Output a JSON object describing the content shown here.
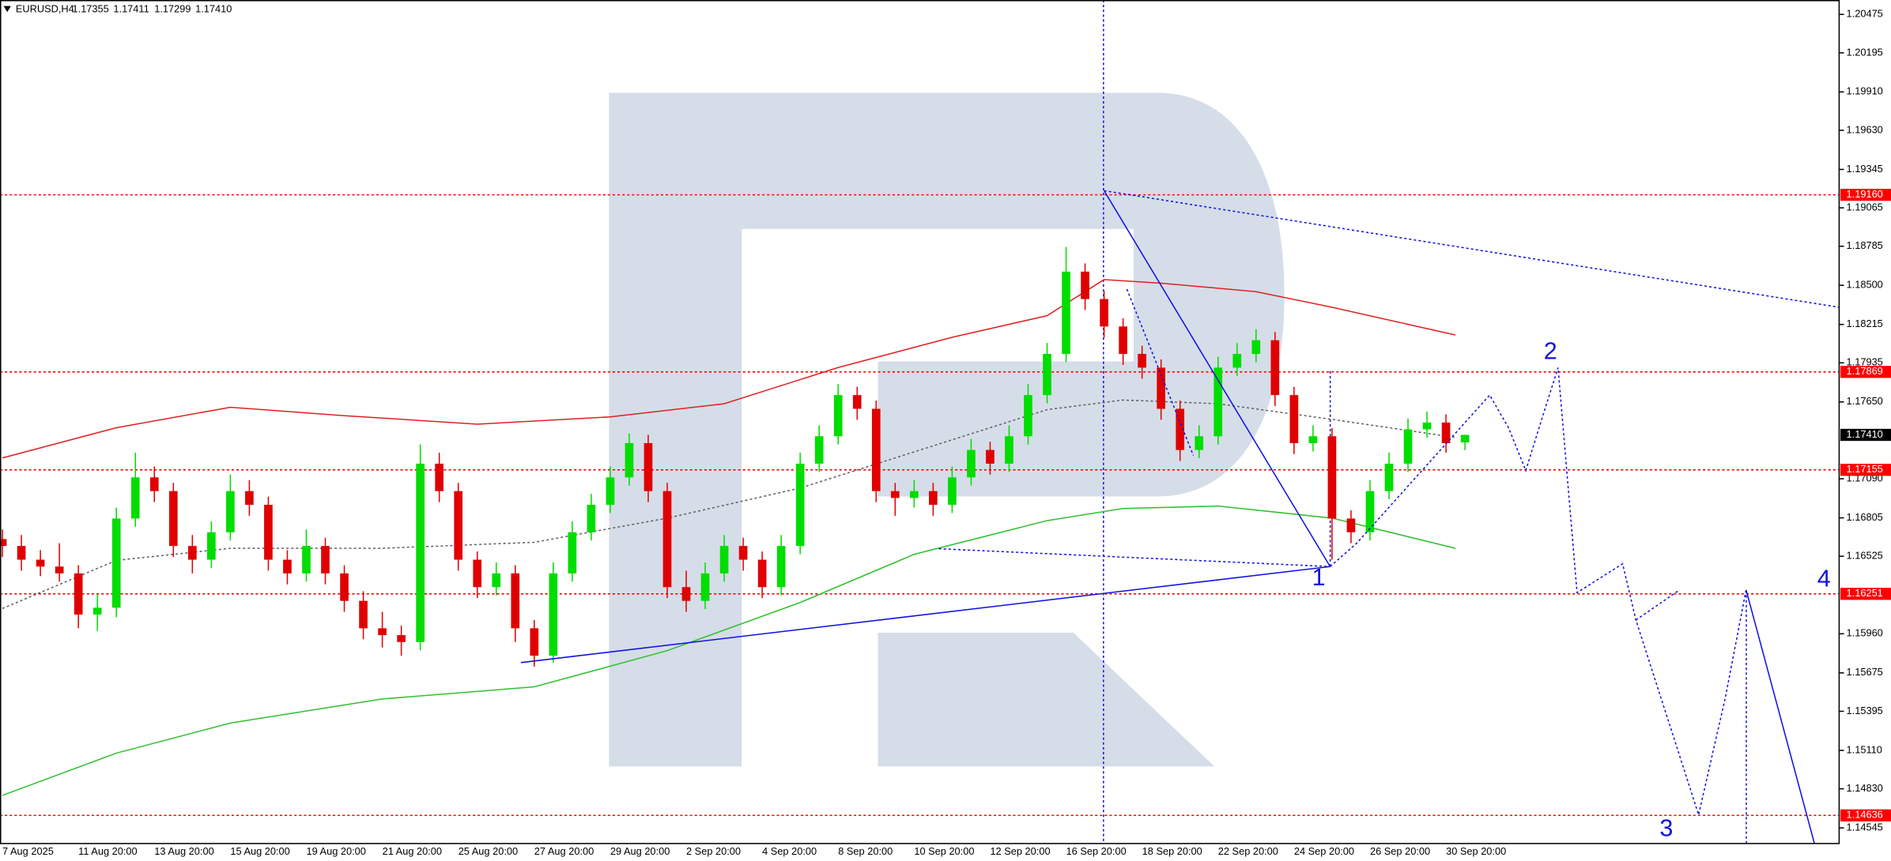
{
  "chart_data": {
    "type": "candlestick",
    "symbol": "EURUSD,H4",
    "header_values": [
      "1.17355",
      "1.17411",
      "1.17299",
      "1.17410"
    ],
    "categories": [
      "7 Aug 2025",
      null,
      null,
      null,
      "11 Aug 20:00",
      null,
      null,
      null,
      "13 Aug 20:00",
      null,
      null,
      null,
      "15 Aug 20:00",
      null,
      null,
      null,
      "19 Aug 20:00",
      null,
      null,
      null,
      "21 Aug 20:00",
      null,
      null,
      null,
      "25 Aug 20:00",
      null,
      null,
      null,
      "27 Aug 20:00",
      null,
      null,
      null,
      "29 Aug 20:00",
      null,
      null,
      null,
      "2 Sep 20:00",
      null,
      null,
      null,
      "4 Sep 20:00",
      null,
      null,
      null,
      "8 Sep 20:00",
      null,
      null,
      null,
      "10 Sep 20:00",
      null,
      null,
      null,
      "12 Sep 20:00",
      null,
      null,
      null,
      "16 Sep 20:00",
      null,
      null,
      null,
      "18 Sep 20:00",
      null,
      null,
      null,
      "22 Sep 20:00",
      null,
      null,
      null,
      "24 Sep 20:00",
      null,
      null,
      null,
      "26 Sep 20:00",
      null,
      null,
      null,
      "30 Sep 20:00",
      null,
      null,
      null,
      null,
      null,
      null,
      null,
      null,
      null,
      null,
      null,
      null,
      null,
      null,
      null,
      null,
      null,
      null,
      null,
      null
    ],
    "ohlc": [
      [
        1.1665,
        1.1672,
        1.1652,
        1.166
      ],
      [
        1.166,
        1.1668,
        1.1642,
        1.165
      ],
      [
        1.165,
        1.1657,
        1.1638,
        1.1645
      ],
      [
        1.1645,
        1.1662,
        1.1634,
        1.164
      ],
      [
        1.164,
        1.1646,
        1.16,
        1.161
      ],
      [
        1.161,
        1.1625,
        1.1598,
        1.1615
      ],
      [
        1.1615,
        1.1688,
        1.1608,
        1.168
      ],
      [
        1.168,
        1.1728,
        1.1674,
        1.171
      ],
      [
        1.171,
        1.1718,
        1.1692,
        1.17
      ],
      [
        1.17,
        1.1706,
        1.1652,
        1.166
      ],
      [
        1.166,
        1.1668,
        1.164,
        1.165
      ],
      [
        1.165,
        1.1678,
        1.1644,
        1.167
      ],
      [
        1.167,
        1.1712,
        1.1664,
        1.17
      ],
      [
        1.17,
        1.1708,
        1.1682,
        1.169
      ],
      [
        1.169,
        1.1696,
        1.1642,
        1.165
      ],
      [
        1.165,
        1.1657,
        1.1632,
        1.164
      ],
      [
        1.164,
        1.1672,
        1.1634,
        1.166
      ],
      [
        1.166,
        1.1666,
        1.1632,
        1.164
      ],
      [
        1.164,
        1.1646,
        1.1612,
        1.162
      ],
      [
        1.162,
        1.1627,
        1.1592,
        1.16
      ],
      [
        1.16,
        1.1612,
        1.1586,
        1.1595
      ],
      [
        1.1595,
        1.1602,
        1.158,
        1.159
      ],
      [
        1.159,
        1.1734,
        1.1584,
        1.172
      ],
      [
        1.172,
        1.1728,
        1.1692,
        1.17
      ],
      [
        1.17,
        1.1706,
        1.1642,
        1.165
      ],
      [
        1.165,
        1.1656,
        1.1622,
        1.163
      ],
      [
        1.163,
        1.1648,
        1.1624,
        1.164
      ],
      [
        1.164,
        1.1646,
        1.159,
        1.16
      ],
      [
        1.16,
        1.1606,
        1.1572,
        1.158
      ],
      [
        1.158,
        1.1648,
        1.1575,
        1.164
      ],
      [
        1.164,
        1.1678,
        1.1634,
        1.167
      ],
      [
        1.167,
        1.1698,
        1.1664,
        1.169
      ],
      [
        1.169,
        1.1718,
        1.1684,
        1.171
      ],
      [
        1.171,
        1.1742,
        1.1704,
        1.1735
      ],
      [
        1.1735,
        1.1741,
        1.1692,
        1.17
      ],
      [
        1.17,
        1.1706,
        1.1622,
        1.163
      ],
      [
        1.163,
        1.1642,
        1.1612,
        1.162
      ],
      [
        1.162,
        1.1648,
        1.1614,
        1.164
      ],
      [
        1.164,
        1.1668,
        1.1634,
        1.166
      ],
      [
        1.166,
        1.1666,
        1.1642,
        1.165
      ],
      [
        1.165,
        1.1656,
        1.1622,
        1.163
      ],
      [
        1.163,
        1.1668,
        1.1624,
        1.166
      ],
      [
        1.166,
        1.1728,
        1.1654,
        1.172
      ],
      [
        1.172,
        1.1748,
        1.1714,
        1.174
      ],
      [
        1.174,
        1.1778,
        1.1734,
        1.177
      ],
      [
        1.177,
        1.1776,
        1.1752,
        1.176
      ],
      [
        1.176,
        1.1766,
        1.1692,
        1.17
      ],
      [
        1.17,
        1.1706,
        1.1682,
        1.1695
      ],
      [
        1.1695,
        1.1708,
        1.1688,
        1.17
      ],
      [
        1.17,
        1.1706,
        1.1682,
        1.169
      ],
      [
        1.169,
        1.1718,
        1.1684,
        1.171
      ],
      [
        1.171,
        1.1738,
        1.1704,
        1.173
      ],
      [
        1.173,
        1.1736,
        1.1712,
        1.172
      ],
      [
        1.172,
        1.1748,
        1.1714,
        1.174
      ],
      [
        1.174,
        1.1778,
        1.1734,
        1.177
      ],
      [
        1.177,
        1.1808,
        1.1764,
        1.18
      ],
      [
        1.18,
        1.1878,
        1.1794,
        1.186
      ],
      [
        1.186,
        1.1866,
        1.1832,
        1.184
      ],
      [
        1.184,
        1.1846,
        1.1812,
        1.182
      ],
      [
        1.182,
        1.1826,
        1.1792,
        1.18
      ],
      [
        1.18,
        1.1806,
        1.1782,
        1.179
      ],
      [
        1.179,
        1.1796,
        1.1752,
        1.176
      ],
      [
        1.176,
        1.1766,
        1.1722,
        1.173
      ],
      [
        1.173,
        1.1748,
        1.1724,
        1.174
      ],
      [
        1.174,
        1.1798,
        1.1734,
        1.179
      ],
      [
        1.179,
        1.1808,
        1.1784,
        1.18
      ],
      [
        1.18,
        1.1818,
        1.1794,
        1.181
      ],
      [
        1.181,
        1.1816,
        1.1762,
        1.177
      ],
      [
        1.177,
        1.1776,
        1.1727,
        1.1735
      ],
      [
        1.1735,
        1.1748,
        1.1729,
        1.174
      ],
      [
        1.174,
        1.1746,
        1.165,
        1.168
      ],
      [
        1.168,
        1.1686,
        1.1662,
        1.167
      ],
      [
        1.167,
        1.1708,
        1.1664,
        1.17
      ],
      [
        1.17,
        1.1728,
        1.1694,
        1.172
      ],
      [
        1.172,
        1.1753,
        1.1714,
        1.1745
      ],
      [
        1.1745,
        1.1758,
        1.1739,
        1.175
      ],
      [
        1.175,
        1.1756,
        1.1728,
        1.1735
      ],
      [
        1.17355,
        1.17411,
        1.17299,
        1.1741
      ]
    ],
    "up_color": "#00dd00",
    "down_color": "#e00000",
    "ylim": [
      1.14431,
      1.2058
    ],
    "yticks": [
      1.20475,
      1.20195,
      {
        "value": 1.1991,
        "label": "1.19910"
      },
      {
        "value": 1.1963,
        "label": "1.19630"
      },
      1.19345,
      1.19065,
      1.18785,
      {
        "value": 1.185,
        "label": "1.18500"
      },
      1.18215,
      1.17935,
      {
        "value": 1.1765,
        "label": "1.17650"
      },
      {
        "value": 1.1709,
        "label": "1.17090"
      },
      1.16805,
      1.16525,
      {
        "value": 1.1596,
        "label": "1.15960"
      },
      1.15675,
      1.15395,
      {
        "value": 1.1511,
        "label": "1.15110"
      },
      {
        "value": 1.1483,
        "label": "1.14830"
      },
      1.14545
    ],
    "levels": [
      {
        "value": 1.1916,
        "label": "1.19160"
      },
      1.17869,
      1.17155,
      1.16251,
      1.14636
    ],
    "level_color": "#ff0000",
    "current_price": {
      "value": 1.1741,
      "label": "1.17410"
    },
    "grid": false,
    "indicators": [
      {
        "color": "#e02020",
        "style": "solid",
        "x": [
          0,
          6,
          12,
          18,
          25,
          32,
          38,
          44,
          50,
          55,
          58,
          61,
          66,
          70,
          76.5
        ],
        "values": [
          1.17242,
          1.17462,
          1.17611,
          1.1755,
          1.17488,
          1.17541,
          1.17637,
          1.17901,
          1.18121,
          1.18279,
          1.18542,
          1.18516,
          1.18454,
          1.1834,
          1.18138
        ]
      },
      {
        "color": "#606060",
        "style": "dotted",
        "x": [
          0,
          6,
          12,
          20,
          28,
          35,
          42,
          48,
          55,
          59,
          64,
          70,
          76.5
        ],
        "values": [
          1.16144,
          1.16495,
          1.16583,
          1.16583,
          1.16627,
          1.16803,
          1.17022,
          1.17286,
          1.17594,
          1.17664,
          1.17637,
          1.17523,
          1.17391
        ]
      },
      {
        "color": "#30c030",
        "style": "solid",
        "x": [
          0,
          6,
          12,
          20,
          28,
          35,
          42,
          48,
          55,
          59,
          64,
          70,
          76.5
        ],
        "values": [
          1.14782,
          1.1509,
          1.15309,
          1.15485,
          1.15573,
          1.15837,
          1.16188,
          1.16539,
          1.16785,
          1.16873,
          1.16891,
          1.16803,
          1.16583
        ]
      }
    ],
    "drawings": [
      {
        "color": "#1010e0",
        "style": "solid",
        "x": [
          27.3,
          69.9
        ],
        "values": [
          1.1575,
          1.1645
        ]
      },
      {
        "color": "#1010e0",
        "style": "solid",
        "x": [
          58,
          69.9
        ],
        "values": [
          1.1919,
          1.1645
        ]
      },
      {
        "color": "#1010e0",
        "style": "dotted",
        "x": [
          58,
          96.7
        ],
        "values": [
          1.1919,
          1.1834
        ]
      },
      {
        "color": "#1010e0",
        "style": "dotted",
        "x": [
          49.3,
          69.9
        ],
        "values": [
          1.1658,
          1.1645
        ]
      },
      {
        "color": "#1010e0",
        "style": "dotted",
        "x": [
          59.2,
          62.7
        ],
        "values": [
          1.18472,
          1.1726
        ]
      },
      {
        "color": "#1010e0",
        "style": "dotted",
        "x": [
          69.9,
          71.3,
          78.3,
          79.3,
          80.2,
          81.1,
          81.9,
          82.9,
          85.3,
          86.0,
          89.3,
          90.7,
          91.8
        ],
        "values": [
          1.1645,
          1.1662,
          1.177,
          1.1746,
          1.1715,
          1.1755,
          1.179,
          1.1626,
          1.1647,
          1.1606,
          1.1464,
          1.1549,
          1.1628
        ]
      },
      {
        "color": "#1010e0",
        "style": "dotted",
        "x": [
          86.0,
          88.3
        ],
        "values": [
          1.1606,
          1.1628
        ]
      },
      {
        "color": "#1010e0",
        "style": "solid",
        "x": [
          91.8,
          95.4
        ],
        "values": [
          1.1628,
          1.1443
        ]
      }
    ],
    "waves": [
      {
        "label": "1",
        "x": 69.3,
        "y": 1.1636
      },
      {
        "label": "2",
        "x": 81.5,
        "y": 1.1801
      },
      {
        "label": "3",
        "x": 87.6,
        "y": 1.1453
      },
      {
        "label": "4",
        "x": 95.9,
        "y": 1.1635
      }
    ]
  }
}
